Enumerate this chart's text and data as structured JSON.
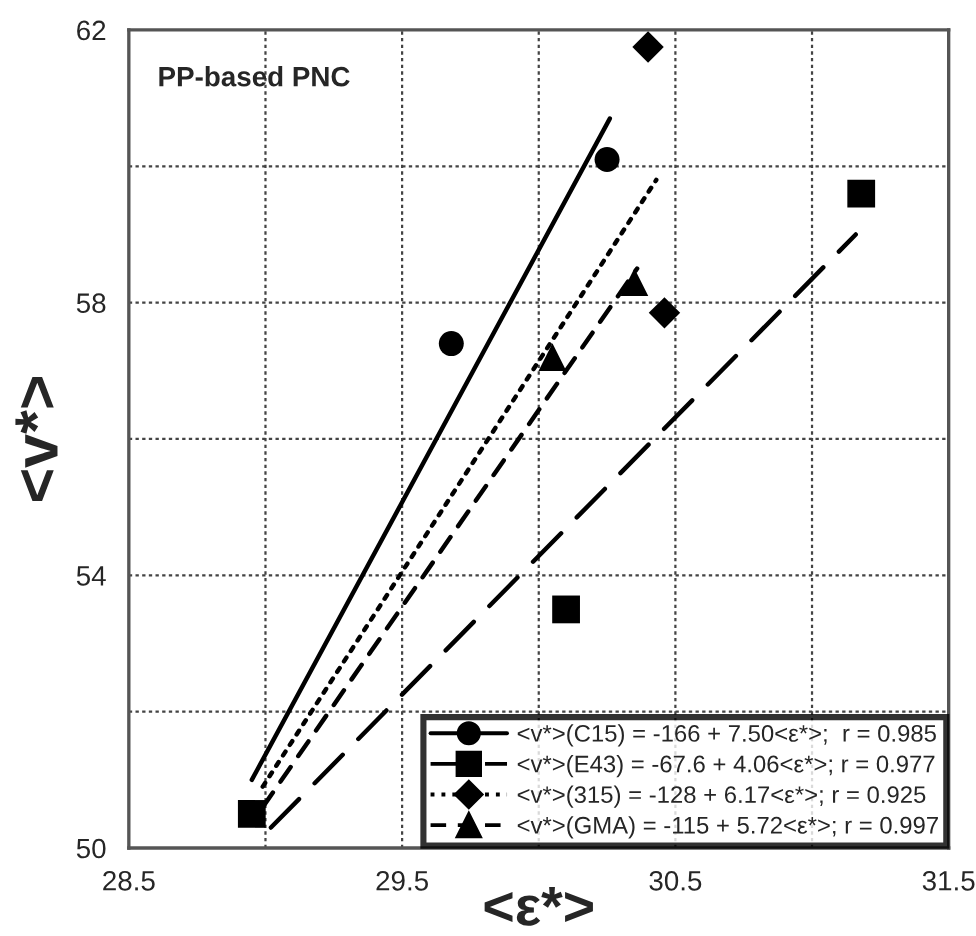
{
  "chart_data": {
    "type": "scatter",
    "xlabel": "<ε*>",
    "ylabel": "<v*>",
    "annotations": [
      "PP-based PNC"
    ],
    "xlim": [
      28.5,
      31.5
    ],
    "ylim": [
      50,
      62
    ],
    "xticks": [
      28.5,
      {
        "value": 29,
        "label": null
      },
      29.5,
      {
        "value": 30,
        "label": null
      },
      30.5,
      {
        "value": 31,
        "label": null
      },
      31.5
    ],
    "yticks": [
      50,
      {
        "value": 52,
        "label": null
      },
      54,
      {
        "value": 56,
        "label": null
      },
      58,
      {
        "value": 60,
        "label": null
      },
      62
    ],
    "grid": true,
    "legend": "bottom right",
    "series": [
      {
        "name": "<v*>(C15) = -166 + 7.50<ε*>;  r = 0.985",
        "color": "#000000",
        "marker": "circle",
        "x": [
          29.68,
          30.25
        ],
        "values": [
          57.4,
          60.1
        ]
      },
      {
        "name": "<v*>(E43) = -67.6 + 4.06<ε*>; r = 0.977",
        "color": "#000000",
        "marker": "square",
        "x": [
          28.95,
          30.1,
          31.18
        ],
        "values": [
          50.5,
          53.5,
          59.6
        ]
      },
      {
        "name": "<v*>(315) = -128 + 6.17<ε*>; r = 0.925",
        "color": "#000000",
        "marker": "diamond",
        "x": [
          30.4,
          30.46
        ],
        "values": [
          61.75,
          57.85
        ]
      },
      {
        "name": "<v*>(GMA) = -115 + 5.72<ε*>; r = 0.997",
        "color": "#000000",
        "marker": "triangle",
        "x": [
          30.05,
          30.35
        ],
        "values": [
          57.2,
          58.3
        ]
      },
      {
        "type": "line",
        "color": "#000000",
        "line_style": "solid",
        "x": [
          28.95,
          30.26
        ],
        "values": [
          51.0,
          60.7
        ]
      },
      {
        "type": "line",
        "color": "#000000",
        "line_style": "longdash",
        "x": [
          29.02,
          31.16
        ],
        "values": [
          50.3,
          59.0
        ]
      },
      {
        "type": "line",
        "color": "#000000",
        "line_style": "dotted",
        "x": [
          28.99,
          30.43
        ],
        "values": [
          50.9,
          59.8
        ]
      },
      {
        "type": "line",
        "color": "#000000",
        "line_style": "dashed",
        "x": [
          28.99,
          30.36
        ],
        "values": [
          50.6,
          58.5
        ]
      }
    ]
  }
}
